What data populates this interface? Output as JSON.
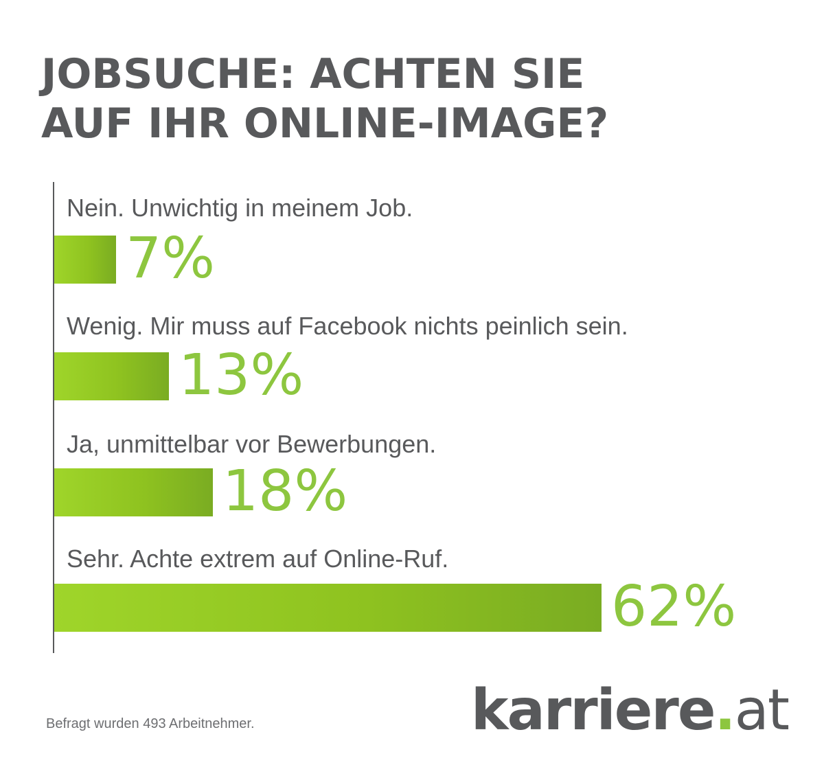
{
  "chart_data": {
    "type": "bar",
    "orientation": "horizontal",
    "title": "JOBSUCHE: ACHTEN SIE AUF IHR ONLINE-IMAGE?",
    "title_lines": [
      "JOBSUCHE: ACHTEN SIE",
      "AUF IHR ONLINE-IMAGE?"
    ],
    "categories": [
      "Nein. Unwichtig in meinem Job.",
      "Wenig. Mir muss auf Facebook nichts peinlich sein.",
      "Ja, unmittelbar vor Bewerbungen.",
      "Sehr. Achte extrem auf Online-Ruf."
    ],
    "values": [
      7,
      13,
      18,
      62
    ],
    "value_labels": [
      "7%",
      "13%",
      "18%",
      "62%"
    ],
    "unit": "%",
    "xlim": [
      0,
      62
    ],
    "grid": false,
    "legend": "none"
  },
  "colors": {
    "title": "#58595b",
    "text": "#58595b",
    "bar_start": "#9fd52a",
    "bar_end": "#7aac22",
    "value": "#8dc63f"
  },
  "footnote": "Befragt wurden 493 Arbeitnehmer.",
  "logo": {
    "brand": "karriere",
    "dot": ".",
    "tld": "at"
  }
}
